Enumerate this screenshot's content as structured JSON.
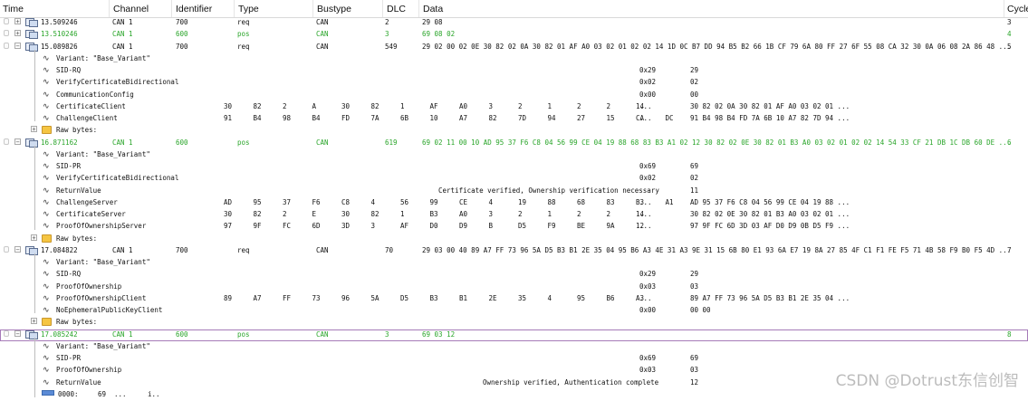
{
  "header": {
    "time": "Time",
    "channel": "Channel",
    "identifier": "Identifier",
    "type": "Type",
    "bustype": "Bustype",
    "dlc": "DLC",
    "data": "Data",
    "cycle": "Cycle"
  },
  "colors": {
    "green": "#2aa52a",
    "highlight_border": "#a67bb8",
    "folder": "#f5c542",
    "bar": "#5b8bd6"
  },
  "messages": [
    {
      "time": "13.509246",
      "channel": "CAN 1",
      "id": "700",
      "type": "req",
      "bus": "CAN",
      "dlc": "2",
      "data": "29 08",
      "cycle": "3"
    },
    {
      "time": "13.510246",
      "channel": "CAN 1",
      "id": "600",
      "type": "pos",
      "bus": "CAN",
      "dlc": "3",
      "data": "69 08 02",
      "cycle": "4"
    },
    {
      "time": "15.089826",
      "channel": "CAN 1",
      "id": "700",
      "type": "req",
      "bus": "CAN",
      "dlc": "549",
      "data": "29 02 00 02 0E 30 82 02 0A 30 82 01 AF A0 03 02 01 02 02 14 1D 0C B7 DD 94 B5 B2 66 1B CF 79 6A 80 FF 27 6F 55 08 CA 32 30 0A 06 08 2A 86 48 ...",
      "cycle": "5"
    },
    {
      "time": "16.871162",
      "channel": "CAN 1",
      "id": "600",
      "type": "pos",
      "bus": "CAN",
      "dlc": "619",
      "data": "69 02 11 00 10 AD 95 37 F6 C8 04 56 99 CE 04 19 88 68 83 B3 A1 02 12 30 82 02 0E 30 82 01 B3 A0 03 02 01 02 02 14 54 33 CF 21 DB 1C DB 60 DE ...",
      "cycle": "6"
    },
    {
      "time": "17.084822",
      "channel": "CAN 1",
      "id": "700",
      "type": "req",
      "bus": "CAN",
      "dlc": "70",
      "data": "29 03 00 40 89 A7 FF 73 96 5A D5 B3 B1 2E 35 04 95 B6 A3 4E 31 A3 9E 31 15 6B 80 E1 93 6A E7 19 8A 27 85 4F C1 F1 FE F5 71 4B 58 F9 B0 F5 4D ...",
      "cycle": "7"
    },
    {
      "time": "17.085242",
      "channel": "CAN 1",
      "id": "600",
      "type": "pos",
      "bus": "CAN",
      "dlc": "3",
      "data": "69 03 12",
      "cycle": "8"
    }
  ],
  "signals": {
    "variant": "Variant: \"Base_Variant\"",
    "sid_rq": "SID-RQ",
    "sid_pr": "SID-PR",
    "verify_cert": "VerifyCertificateBidirectional",
    "comm_config": "CommunicationConfig",
    "cert_client": "CertificateClient",
    "challenge_client": "ChallengeClient",
    "raw_bytes": "Raw bytes:",
    "return_value": "ReturnValue",
    "challenge_server": "ChallengeServer",
    "cert_server": "CertificateServer",
    "pown_server": "ProofOfOwnershipServer",
    "proof_ownership": "ProofOfOwnership",
    "pown_client": "ProofOfOwnershipClient",
    "no_eph_key": "NoEphemeralPublicKeyClient",
    "raw_0000": "0000:",
    "ellipsis": "...",
    "dots": "i..",
    "val_0x29": "0x29",
    "val_29": "29",
    "val_0x02": "0x02",
    "val_02": "02",
    "val_0x00": "0x00",
    "val_00": "00",
    "val_0x69": "0x69",
    "val_69": "69",
    "val_0x03": "0x03",
    "val_03": "03",
    "val_11": "11",
    "val_12": "12",
    "val_0000_byte": "69",
    "cert_client_bytes": [
      "30",
      "82",
      "2",
      "A",
      "30",
      "82",
      "1",
      "AF",
      "A0",
      "3",
      "2",
      "1",
      "2",
      "2",
      "14"
    ],
    "cert_client_val": "30 82 02 0A 30 82 01 AF A0 03 02 01 ...",
    "challenge_client_bytes": [
      "91",
      "B4",
      "98",
      "B4",
      "FD",
      "7A",
      "6B",
      "10",
      "A7",
      "82",
      "7D",
      "94",
      "27",
      "15",
      "CA",
      "DC"
    ],
    "challenge_client_val": "91 B4 98 B4 FD 7A 6B 10 A7 82 7D 94 ...",
    "verify_msg": "Certificate verified, Ownership verification necessary",
    "challenge_server_bytes": [
      "AD",
      "95",
      "37",
      "F6",
      "C8",
      "4",
      "56",
      "99",
      "CE",
      "4",
      "19",
      "88",
      "68",
      "83",
      "B3",
      "A1"
    ],
    "challenge_server_val": "AD 95 37 F6 C8 04 56 99 CE 04 19 88 ...",
    "cert_server_bytes": [
      "30",
      "82",
      "2",
      "E",
      "30",
      "82",
      "1",
      "B3",
      "A0",
      "3",
      "2",
      "1",
      "2",
      "2",
      "14"
    ],
    "cert_server_val": "30 82 02 0E 30 82 01 B3 A0 03 02 01 ...",
    "pown_server_bytes": [
      "97",
      "9F",
      "FC",
      "6D",
      "3D",
      "3",
      "AF",
      "D0",
      "D9",
      "B",
      "D5",
      "F9",
      "BE",
      "9A",
      "12"
    ],
    "pown_server_val": "97 9F FC 6D 3D 03 AF D0 D9 0B D5 F9 ...",
    "pown_client_bytes": [
      "89",
      "A7",
      "FF",
      "73",
      "96",
      "5A",
      "D5",
      "B3",
      "B1",
      "2E",
      "35",
      "4",
      "95",
      "B6",
      "A3"
    ],
    "pown_client_val": "89 A7 FF 73 96 5A D5 B3 B1 2E 35 04 ...",
    "ownership_msg": "Ownership verified, Authentication complete",
    "val_00_00": "00 00"
  },
  "watermark": "CSDN @Dotrust东信创智"
}
